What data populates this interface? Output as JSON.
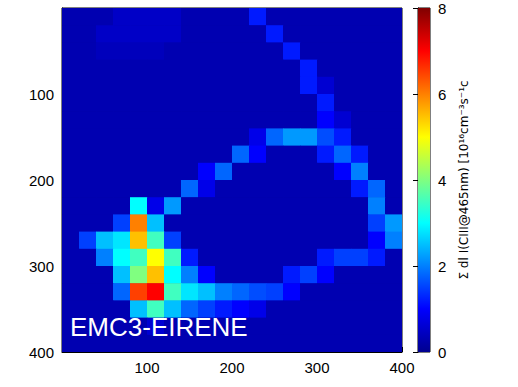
{
  "chart_data": {
    "type": "heatmap",
    "annotation": "EMC3-EIRENE",
    "x": [
      10,
      30,
      50,
      70,
      90,
      110,
      130,
      150,
      170,
      190,
      210,
      230,
      250,
      270,
      290,
      310,
      330,
      350,
      370,
      390
    ],
    "y": [
      10,
      30,
      50,
      70,
      90,
      110,
      130,
      150,
      170,
      190,
      210,
      230,
      250,
      270,
      290,
      310,
      330,
      350,
      370,
      390
    ],
    "values": [
      [
        0.3,
        0.3,
        0.3,
        0.5,
        0.5,
        0.5,
        0.5,
        0.3,
        0.3,
        0.3,
        0.3,
        1.2,
        0.3,
        0.3,
        0.3,
        0.3,
        0.3,
        0.3,
        0.3,
        0.3
      ],
      [
        0.3,
        0.3,
        0.5,
        0.5,
        0.5,
        0.5,
        0.5,
        0.3,
        0.3,
        0.3,
        0.3,
        0.3,
        1.2,
        0.3,
        0.3,
        0.3,
        0.3,
        0.3,
        0.3,
        0.3
      ],
      [
        0.3,
        0.3,
        0.4,
        0.4,
        0.4,
        0.4,
        0.3,
        0.3,
        0.3,
        0.3,
        0.3,
        0.3,
        0.3,
        1.2,
        0.3,
        0.3,
        0.3,
        0.3,
        0.3,
        0.3
      ],
      [
        0.3,
        0.3,
        0.3,
        0.3,
        0.3,
        0.3,
        0.3,
        0.3,
        0.3,
        0.3,
        0.3,
        0.3,
        0.3,
        0.3,
        1.2,
        0.3,
        0.3,
        0.3,
        0.3,
        0.3
      ],
      [
        0.3,
        0.3,
        0.3,
        0.3,
        0.3,
        0.3,
        0.3,
        0.3,
        0.3,
        0.3,
        0.3,
        0.3,
        0.3,
        0.3,
        1.2,
        0.6,
        0.3,
        0.3,
        0.3,
        0.3
      ],
      [
        0.3,
        0.3,
        0.3,
        0.3,
        0.3,
        0.3,
        0.3,
        0.3,
        0.3,
        0.3,
        0.3,
        0.3,
        0.3,
        0.3,
        0.3,
        1.2,
        0.3,
        0.3,
        0.3,
        0.3
      ],
      [
        0.3,
        0.3,
        0.3,
        0.3,
        0.3,
        0.3,
        0.3,
        0.3,
        0.3,
        0.3,
        0.3,
        0.3,
        0.3,
        0.3,
        0.3,
        1.0,
        0.6,
        0.3,
        0.3,
        0.3
      ],
      [
        0.3,
        0.3,
        0.3,
        0.3,
        0.3,
        0.3,
        0.3,
        0.3,
        0.3,
        0.3,
        0.3,
        0.8,
        1.8,
        2.2,
        2.2,
        1.6,
        1.2,
        0.3,
        0.3,
        0.3
      ],
      [
        0.3,
        0.3,
        0.3,
        0.3,
        0.3,
        0.3,
        0.3,
        0.3,
        0.3,
        0.3,
        1.8,
        1.0,
        0.3,
        0.3,
        0.3,
        1.2,
        1.8,
        1.2,
        0.3,
        0.3
      ],
      [
        0.3,
        0.3,
        0.3,
        0.3,
        0.3,
        0.3,
        0.3,
        0.3,
        1.0,
        1.8,
        0.3,
        0.3,
        0.3,
        0.3,
        0.3,
        0.3,
        1.0,
        2.0,
        0.3,
        0.3
      ],
      [
        0.3,
        0.3,
        0.3,
        0.3,
        0.3,
        0.3,
        0.3,
        1.8,
        0.8,
        0.3,
        0.3,
        0.3,
        0.3,
        0.3,
        0.3,
        0.3,
        0.3,
        1.2,
        1.8,
        0.3
      ],
      [
        0.3,
        0.3,
        0.3,
        0.3,
        3.0,
        0.8,
        2.2,
        0.3,
        0.3,
        0.3,
        0.3,
        0.3,
        0.3,
        0.3,
        0.3,
        0.3,
        0.3,
        0.3,
        2.0,
        0.3
      ],
      [
        0.3,
        0.3,
        0.3,
        1.5,
        6.0,
        2.5,
        0.3,
        0.3,
        0.3,
        0.3,
        0.3,
        0.3,
        0.3,
        0.3,
        0.3,
        0.3,
        0.3,
        0.3,
        1.5,
        2.2
      ],
      [
        0.3,
        1.5,
        2.5,
        2.8,
        5.5,
        3.5,
        1.5,
        0.3,
        0.3,
        0.3,
        0.3,
        0.3,
        0.3,
        0.3,
        0.3,
        0.3,
        0.3,
        0.3,
        1.0,
        2.0
      ],
      [
        0.3,
        0.3,
        2.0,
        3.0,
        3.5,
        5.0,
        3.5,
        1.2,
        0.3,
        0.3,
        0.3,
        0.3,
        0.3,
        0.3,
        0.3,
        1.2,
        1.5,
        1.5,
        1.2,
        0.3
      ],
      [
        0.3,
        0.3,
        0.3,
        2.5,
        4.0,
        5.5,
        3.0,
        2.0,
        1.0,
        0.3,
        0.3,
        0.3,
        0.3,
        1.2,
        1.5,
        1.0,
        0.3,
        0.3,
        0.3,
        0.3
      ],
      [
        0.3,
        0.3,
        0.3,
        1.8,
        6.5,
        7.0,
        3.5,
        2.8,
        2.5,
        2.0,
        1.8,
        1.6,
        1.5,
        1.0,
        0.3,
        0.3,
        0.3,
        0.3,
        0.3,
        0.3
      ],
      [
        0.3,
        0.3,
        0.3,
        0.3,
        2.5,
        3.5,
        2.5,
        1.8,
        1.5,
        1.2,
        1.0,
        0.8,
        0.3,
        0.3,
        0.3,
        0.3,
        0.3,
        0.3,
        0.3,
        0.3
      ],
      [
        0.3,
        0.3,
        0.3,
        0.3,
        0.3,
        0.6,
        0.3,
        0.3,
        0.3,
        0.3,
        0.3,
        0.3,
        0.3,
        0.3,
        0.3,
        0.3,
        0.3,
        0.3,
        0.3,
        0.3
      ],
      [
        0.3,
        0.3,
        0.3,
        0.3,
        0.3,
        0.3,
        0.3,
        0.3,
        0.3,
        0.3,
        0.3,
        0.3,
        0.3,
        0.3,
        0.3,
        0.3,
        0.3,
        0.3,
        0.3,
        0.3
      ]
    ],
    "xlim": [
      0,
      400
    ],
    "ylim": [
      0,
      400
    ],
    "xticks": [
      100,
      200,
      300,
      400
    ],
    "yticks": [
      100,
      200,
      300,
      400
    ],
    "grid": false,
    "colorbar_range": [
      0,
      8
    ],
    "colorbar_ticks": [
      0,
      2,
      4,
      6,
      8
    ],
    "colorbar_label": "Σ dl I(CIII@465nm) [10¹⁶cm⁻³s⁻¹c"
  }
}
